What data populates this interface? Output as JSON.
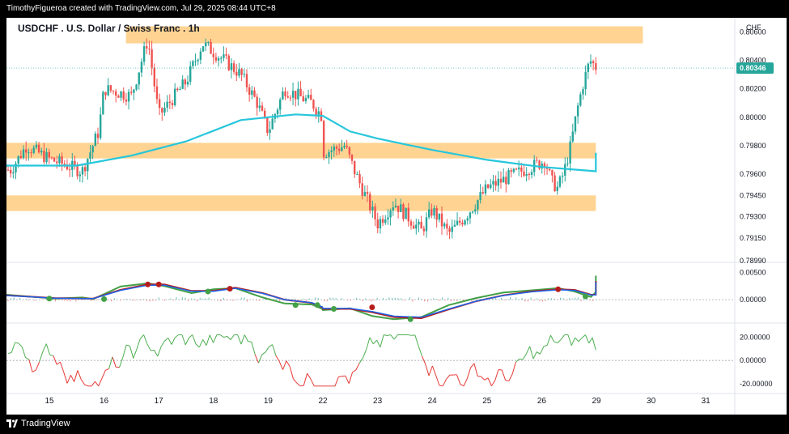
{
  "header": {
    "attribution": "TimothyFigueroa created with TradingView.com, Jul 29, 2025 08:44 UTC+8"
  },
  "footer": {
    "brand": "TradingView"
  },
  "chart_data": [
    {
      "type": "candlestick",
      "title": "USDCHF . U.S. Dollar / Swiss Franc . 1h",
      "currency_label": "CHF",
      "ylim": [
        0.7899,
        0.807
      ],
      "price_ticks": [
        "0.80600",
        "0.80400",
        "0.80200",
        "0.80000",
        "0.79800",
        "0.79600",
        "0.79450",
        "0.79300",
        "0.79150",
        "0.78990"
      ],
      "tick_values": [
        0.806,
        0.804,
        0.802,
        0.8,
        0.798,
        0.796,
        0.7945,
        0.793,
        0.7915,
        0.7899
      ],
      "last_price": "0.80346",
      "last_value": 0.80346,
      "x_ticks": [
        "15",
        "16",
        "17",
        "18",
        "19",
        "22",
        "23",
        "24",
        "25",
        "26",
        "29",
        "30",
        "31"
      ],
      "zones": [
        {
          "from_day": 16.4,
          "to_day": 29.85,
          "low": 0.8052,
          "high": 0.8064
        },
        {
          "from_day": 14.0,
          "to_day": 28.7,
          "low": 0.7971,
          "high": 0.7982
        },
        {
          "from_day": 14.0,
          "to_day": 28.7,
          "low": 0.7934,
          "high": 0.7945
        }
      ],
      "ma_line": {
        "color": "#26c6da",
        "points": [
          [
            14.0,
            0.7966
          ],
          [
            14.5,
            0.7966
          ],
          [
            15.5,
            0.7966
          ],
          [
            16.5,
            0.7973
          ],
          [
            17.5,
            0.7983
          ],
          [
            18.5,
            0.7998
          ],
          [
            19.5,
            0.8002
          ],
          [
            22.0,
            0.8001
          ],
          [
            22.5,
            0.799
          ],
          [
            23.0,
            0.7985
          ],
          [
            24.0,
            0.7977
          ],
          [
            25.0,
            0.797
          ],
          [
            26.0,
            0.7965
          ],
          [
            27.0,
            0.7962
          ],
          [
            27.5,
            0.7963
          ],
          [
            28.0,
            0.7966
          ],
          [
            28.5,
            0.7975
          ]
        ]
      },
      "candles_key_points": [
        [
          14.0,
          0.7963
        ],
        [
          14.4,
          0.798
        ],
        [
          14.9,
          0.7972
        ],
        [
          15.6,
          0.7962
        ],
        [
          15.9,
          0.799
        ],
        [
          16.0,
          0.802
        ],
        [
          16.5,
          0.8015
        ],
        [
          16.8,
          0.8055
        ],
        [
          17.0,
          0.8001
        ],
        [
          17.5,
          0.8025
        ],
        [
          17.8,
          0.8052
        ],
        [
          18.2,
          0.804
        ],
        [
          18.5,
          0.803
        ],
        [
          18.8,
          0.801
        ],
        [
          19.0,
          0.799
        ],
        [
          19.3,
          0.802
        ],
        [
          19.8,
          0.801
        ],
        [
          20.0,
          0.8
        ],
        [
          22.0,
          0.7975
        ],
        [
          22.4,
          0.798
        ],
        [
          22.6,
          0.796
        ],
        [
          23.0,
          0.7925
        ],
        [
          23.3,
          0.794
        ],
        [
          23.8,
          0.792
        ],
        [
          24.0,
          0.7935
        ],
        [
          24.3,
          0.7918
        ],
        [
          24.6,
          0.793
        ],
        [
          25.0,
          0.795
        ],
        [
          25.4,
          0.7958
        ],
        [
          25.8,
          0.7965
        ],
        [
          26.1,
          0.797
        ],
        [
          26.3,
          0.7955
        ],
        [
          26.5,
          0.795
        ],
        [
          26.7,
          0.7962
        ],
        [
          26.9,
          0.798
        ],
        [
          27.1,
          0.8005
        ],
        [
          27.3,
          0.8025
        ],
        [
          27.5,
          0.804
        ],
        [
          27.7,
          0.8035
        ]
      ]
    },
    {
      "type": "line",
      "name": "oscillator_1",
      "ylim": [
        -0.004,
        0.0064
      ],
      "y_ticks": [
        "0.00500",
        "0.00000"
      ],
      "tick_values": [
        0.005,
        0.0
      ],
      "series": [
        {
          "color": "#43a047",
          "points": [
            [
              14.0,
              0.0009
            ],
            [
              14.8,
              0.0002
            ],
            [
              15.6,
              0.0004
            ],
            [
              15.8,
              0.0001
            ],
            [
              16.3,
              0.0024
            ],
            [
              16.8,
              0.003
            ],
            [
              17.1,
              0.0025
            ],
            [
              17.6,
              0.0012
            ],
            [
              18.0,
              0.0019
            ],
            [
              18.4,
              0.0021
            ],
            [
              18.9,
              0.0004
            ],
            [
              19.3,
              -0.0007
            ],
            [
              19.8,
              -0.0009
            ],
            [
              20.4,
              -0.0017
            ],
            [
              22.0,
              -0.0019
            ],
            [
              22.5,
              -0.0016
            ],
            [
              22.9,
              -0.003
            ],
            [
              23.3,
              -0.0036
            ],
            [
              23.8,
              -0.0032
            ],
            [
              24.3,
              -0.001
            ],
            [
              24.8,
              0.0003
            ],
            [
              25.3,
              0.0013
            ],
            [
              25.8,
              0.0017
            ],
            [
              26.3,
              0.0021
            ],
            [
              26.6,
              0.0015
            ],
            [
              26.9,
              0.0005
            ],
            [
              27.2,
              0.0014
            ],
            [
              27.5,
              0.0038
            ],
            [
              27.7,
              0.0044
            ]
          ]
        },
        {
          "color": "#b71c1c",
          "points": [
            [
              14.0,
              0.0008
            ],
            [
              14.8,
              0.0003
            ],
            [
              15.6,
              0.0002
            ],
            [
              15.8,
              0.0002
            ],
            [
              16.3,
              0.0018
            ],
            [
              16.8,
              0.0028
            ],
            [
              17.1,
              0.0028
            ],
            [
              17.6,
              0.0016
            ],
            [
              18.0,
              0.0016
            ],
            [
              18.4,
              0.0022
            ],
            [
              18.9,
              0.0012
            ],
            [
              19.3,
              0.0
            ],
            [
              19.8,
              -0.0006
            ],
            [
              20.4,
              -0.0014
            ],
            [
              22.0,
              -0.0017
            ],
            [
              22.5,
              -0.0017
            ],
            [
              22.9,
              -0.0023
            ],
            [
              23.3,
              -0.0032
            ],
            [
              23.8,
              -0.0034
            ],
            [
              24.3,
              -0.0018
            ],
            [
              24.8,
              -0.0003
            ],
            [
              25.3,
              0.0008
            ],
            [
              25.8,
              0.0015
            ],
            [
              26.3,
              0.0019
            ],
            [
              26.6,
              0.0018
            ],
            [
              26.9,
              0.0009
            ],
            [
              27.2,
              0.0009
            ],
            [
              27.5,
              0.0024
            ],
            [
              27.7,
              0.0034
            ]
          ]
        }
      ],
      "cross_markers": [
        {
          "x": 15.0,
          "y": 0.0002,
          "color": "green"
        },
        {
          "x": 16.0,
          "y": 0.0001,
          "color": "green"
        },
        {
          "x": 16.8,
          "y": 0.0028,
          "color": "red"
        },
        {
          "x": 17.0,
          "y": 0.0028,
          "color": "red"
        },
        {
          "x": 17.9,
          "y": 0.0015,
          "color": "green"
        },
        {
          "x": 18.3,
          "y": 0.002,
          "color": "red"
        },
        {
          "x": 19.5,
          "y": -0.001,
          "color": "green"
        },
        {
          "x": 19.9,
          "y": -0.001,
          "color": "green"
        },
        {
          "x": 22.2,
          "y": -0.0017,
          "color": "green"
        },
        {
          "x": 22.9,
          "y": -0.0014,
          "color": "red"
        },
        {
          "x": 23.6,
          "y": -0.0036,
          "color": "green"
        },
        {
          "x": 26.3,
          "y": 0.0019,
          "color": "red"
        },
        {
          "x": 26.8,
          "y": 0.0006,
          "color": "green"
        }
      ]
    },
    {
      "type": "line",
      "name": "oscillator_2",
      "ylim": [
        -27,
        30
      ],
      "y_ticks": [
        "20.00000",
        "0.00000",
        "-20.00000"
      ],
      "tick_values": [
        20,
        0,
        -20
      ]
    }
  ]
}
